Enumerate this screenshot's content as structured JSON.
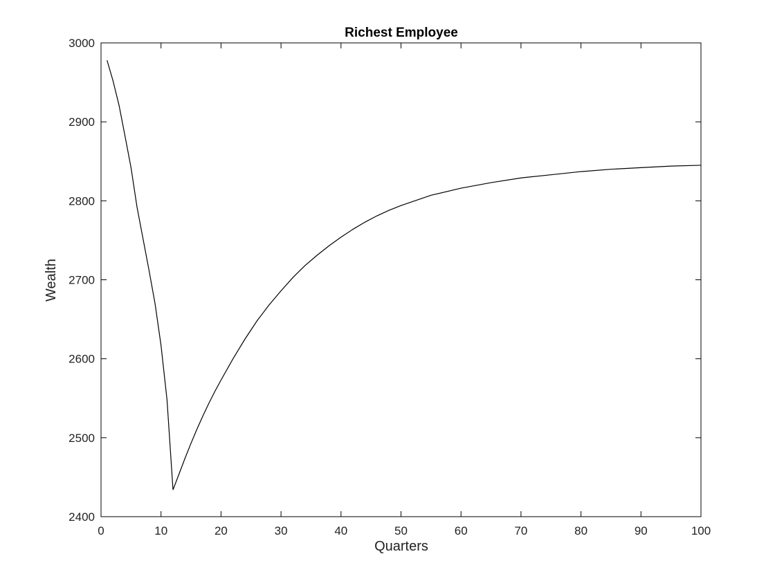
{
  "chart_data": {
    "type": "line",
    "title": "Richest Employee",
    "xlabel": "Quarters",
    "ylabel": "Wealth",
    "xlim": [
      0,
      100
    ],
    "ylim": [
      2400,
      3000
    ],
    "xticks": [
      0,
      10,
      20,
      30,
      40,
      50,
      60,
      70,
      80,
      90,
      100
    ],
    "yticks": [
      2400,
      2500,
      2600,
      2700,
      2800,
      2900,
      3000
    ],
    "grid": false,
    "line_color": "#000000",
    "series": [
      {
        "x": [
          1,
          2,
          3,
          4,
          5,
          6,
          7,
          8,
          9,
          10,
          11,
          12,
          13,
          14,
          15,
          16,
          17,
          18,
          19,
          20,
          22,
          24,
          26,
          28,
          30,
          32,
          34,
          36,
          38,
          40,
          42,
          44,
          46,
          48,
          50,
          55,
          60,
          65,
          70,
          75,
          80,
          85,
          90,
          95,
          100
        ],
        "y": [
          2978,
          2952,
          2921,
          2882,
          2842,
          2792,
          2752,
          2712,
          2670,
          2617,
          2548,
          2434,
          2454,
          2474,
          2493,
          2511,
          2528,
          2544,
          2559,
          2573,
          2600,
          2625,
          2648,
          2668,
          2686,
          2703,
          2718,
          2731,
          2743,
          2754,
          2764,
          2773,
          2781,
          2788,
          2794,
          2807,
          2816,
          2823,
          2829,
          2833,
          2837,
          2840,
          2842,
          2844,
          2845
        ]
      }
    ]
  }
}
